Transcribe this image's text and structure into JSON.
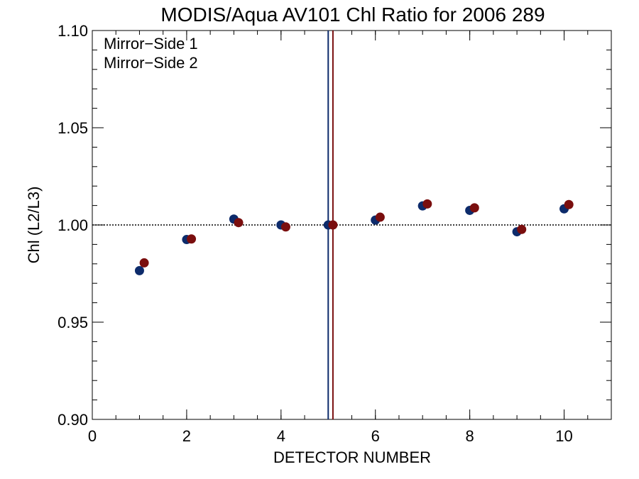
{
  "chart_data": {
    "type": "scatter",
    "title": "MODIS/Aqua AV101 Chl Ratio for 2006 289",
    "xlabel": "DETECTOR NUMBER",
    "ylabel": "Chl (L2/L3)",
    "xlim": [
      0,
      11
    ],
    "ylim": [
      0.9,
      1.1
    ],
    "x_ticks": [
      0,
      2,
      4,
      6,
      8,
      10
    ],
    "x_tick_labels": [
      "0",
      "2",
      "4",
      "6",
      "8",
      "10"
    ],
    "x_minor_step": 0.5,
    "y_ticks": [
      0.9,
      0.95,
      1.0,
      1.05,
      1.1
    ],
    "y_tick_labels": [
      "0.90",
      "0.95",
      "1.00",
      "1.05",
      "1.10"
    ],
    "y_minor_step": 0.01,
    "grid": false,
    "legend_position": "top-left",
    "reference_line": {
      "y": 1.0,
      "style": "dotted"
    },
    "vertical_lines": [
      {
        "x": 5.0,
        "color": "#0d2b6b"
      },
      {
        "x": 5.1,
        "color": "#7a0e0e"
      }
    ],
    "series": [
      {
        "name": "Mirror−Side 1",
        "color": "#0d2b6b",
        "x": [
          1,
          2,
          3,
          4,
          5,
          6,
          7,
          8,
          9,
          10
        ],
        "y": [
          0.9765,
          0.9925,
          1.003,
          1.0,
          1.0,
          1.0025,
          1.0098,
          1.0075,
          0.9965,
          1.0083
        ]
      },
      {
        "name": "Mirror−Side 2",
        "color": "#7a0e0e",
        "x": [
          1.1,
          2.1,
          3.1,
          4.1,
          5.1,
          6.1,
          7.1,
          8.1,
          9.1,
          10.1
        ],
        "y": [
          0.9805,
          0.9928,
          1.0012,
          0.999,
          1.0,
          1.004,
          1.0108,
          1.0088,
          0.9977,
          1.0105
        ]
      }
    ]
  }
}
